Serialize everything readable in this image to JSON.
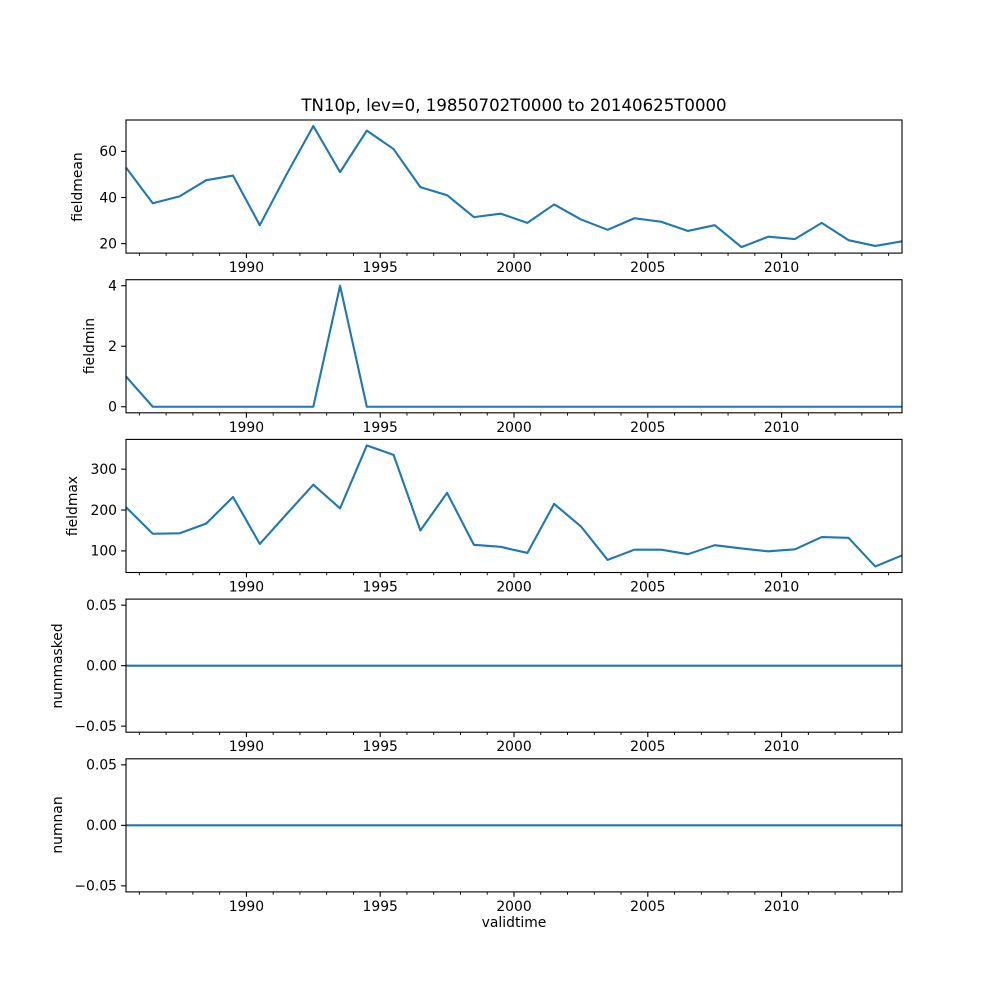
{
  "figure": {
    "title": "TN10p, lev=0, 19850702T0000 to 20140625T0000",
    "background": "#ffffff",
    "line_color": "#1f77b4",
    "axis_color": "#000000"
  },
  "x_axis": {
    "label": "validtime",
    "xlim": [
      1985.5,
      2014.5
    ],
    "major_ticks": [
      1990,
      1995,
      2000,
      2005,
      2010
    ],
    "major_tick_labels": [
      "1990",
      "1995",
      "2000",
      "2005",
      "2010"
    ],
    "minor_tick_step": 1
  },
  "chart_data": [
    {
      "type": "line",
      "name": "fieldmean",
      "ylabel": "fieldmean",
      "ylim": [
        15.9,
        73.6
      ],
      "yticks": [
        20,
        40,
        60
      ],
      "ytick_labels": [
        "20",
        "40",
        "60"
      ],
      "x": [
        1985.5,
        1986.5,
        1987.5,
        1988.5,
        1989.5,
        1990.5,
        1991.5,
        1992.5,
        1993.5,
        1994.5,
        1995.5,
        1996.5,
        1997.5,
        1998.5,
        1999.5,
        2000.5,
        2001.5,
        2002.5,
        2003.5,
        2004.5,
        2005.5,
        2006.5,
        2007.5,
        2008.5,
        2009.5,
        2010.5,
        2011.5,
        2012.5,
        2013.5,
        2014.5
      ],
      "values": [
        53,
        37.5,
        40.5,
        47.5,
        49.5,
        28,
        50,
        71,
        51,
        69,
        61,
        44.5,
        41,
        31.5,
        33,
        29,
        37,
        30.5,
        26,
        31,
        29.5,
        25.5,
        28,
        18.5,
        23,
        22,
        29,
        21.5,
        19,
        21
      ]
    },
    {
      "type": "line",
      "name": "fieldmin",
      "ylabel": "fieldmin",
      "ylim": [
        -0.2,
        4.2
      ],
      "yticks": [
        0,
        2,
        4
      ],
      "ytick_labels": [
        "0",
        "2",
        "4"
      ],
      "x": [
        1985.5,
        1986.5,
        1987.5,
        1988.5,
        1989.5,
        1990.5,
        1991.5,
        1992.5,
        1993.5,
        1994.5,
        1995.5,
        1996.5,
        1997.5,
        1998.5,
        1999.5,
        2000.5,
        2001.5,
        2002.5,
        2003.5,
        2004.5,
        2005.5,
        2006.5,
        2007.5,
        2008.5,
        2009.5,
        2010.5,
        2011.5,
        2012.5,
        2013.5,
        2014.5
      ],
      "values": [
        1,
        0,
        0,
        0,
        0,
        0,
        0,
        0,
        4,
        0,
        0,
        0,
        0,
        0,
        0,
        0,
        0,
        0,
        0,
        0,
        0,
        0,
        0,
        0,
        0,
        0,
        0,
        0,
        0,
        0
      ]
    },
    {
      "type": "line",
      "name": "fieldmax",
      "ylabel": "fieldmax",
      "ylim": [
        47.2,
        372.8
      ],
      "yticks": [
        100,
        200,
        300
      ],
      "ytick_labels": [
        "100",
        "200",
        "300"
      ],
      "x": [
        1985.5,
        1986.5,
        1987.5,
        1988.5,
        1989.5,
        1990.5,
        1991.5,
        1992.5,
        1993.5,
        1994.5,
        1995.5,
        1996.5,
        1997.5,
        1998.5,
        1999.5,
        2000.5,
        2001.5,
        2002.5,
        2003.5,
        2004.5,
        2005.5,
        2006.5,
        2007.5,
        2008.5,
        2009.5,
        2010.5,
        2011.5,
        2012.5,
        2013.5,
        2014.5
      ],
      "values": [
        207,
        142,
        143,
        167,
        232,
        117,
        190,
        262,
        204,
        358,
        335,
        150,
        242,
        115,
        110,
        95,
        215,
        160,
        78,
        103,
        103,
        92,
        114,
        106,
        99,
        104,
        134,
        132,
        62,
        89
      ]
    },
    {
      "type": "line",
      "name": "nummasked",
      "ylabel": "nummasked",
      "ylim": [
        -0.055,
        0.055
      ],
      "yticks": [
        0.05,
        0.0,
        -0.05
      ],
      "ytick_labels": [
        "0.05",
        "0.00",
        "−0.05"
      ],
      "x": [
        1985.5,
        1986.5,
        1987.5,
        1988.5,
        1989.5,
        1990.5,
        1991.5,
        1992.5,
        1993.5,
        1994.5,
        1995.5,
        1996.5,
        1997.5,
        1998.5,
        1999.5,
        2000.5,
        2001.5,
        2002.5,
        2003.5,
        2004.5,
        2005.5,
        2006.5,
        2007.5,
        2008.5,
        2009.5,
        2010.5,
        2011.5,
        2012.5,
        2013.5,
        2014.5
      ],
      "values": [
        0,
        0,
        0,
        0,
        0,
        0,
        0,
        0,
        0,
        0,
        0,
        0,
        0,
        0,
        0,
        0,
        0,
        0,
        0,
        0,
        0,
        0,
        0,
        0,
        0,
        0,
        0,
        0,
        0,
        0
      ]
    },
    {
      "type": "line",
      "name": "numnan",
      "ylabel": "numnan",
      "ylim": [
        -0.055,
        0.055
      ],
      "yticks": [
        0.05,
        0.0,
        -0.05
      ],
      "ytick_labels": [
        "0.05",
        "0.00",
        "−0.05"
      ],
      "x": [
        1985.5,
        1986.5,
        1987.5,
        1988.5,
        1989.5,
        1990.5,
        1991.5,
        1992.5,
        1993.5,
        1994.5,
        1995.5,
        1996.5,
        1997.5,
        1998.5,
        1999.5,
        2000.5,
        2001.5,
        2002.5,
        2003.5,
        2004.5,
        2005.5,
        2006.5,
        2007.5,
        2008.5,
        2009.5,
        2010.5,
        2011.5,
        2012.5,
        2013.5,
        2014.5
      ],
      "values": [
        0,
        0,
        0,
        0,
        0,
        0,
        0,
        0,
        0,
        0,
        0,
        0,
        0,
        0,
        0,
        0,
        0,
        0,
        0,
        0,
        0,
        0,
        0,
        0,
        0,
        0,
        0,
        0,
        0,
        0
      ]
    }
  ]
}
